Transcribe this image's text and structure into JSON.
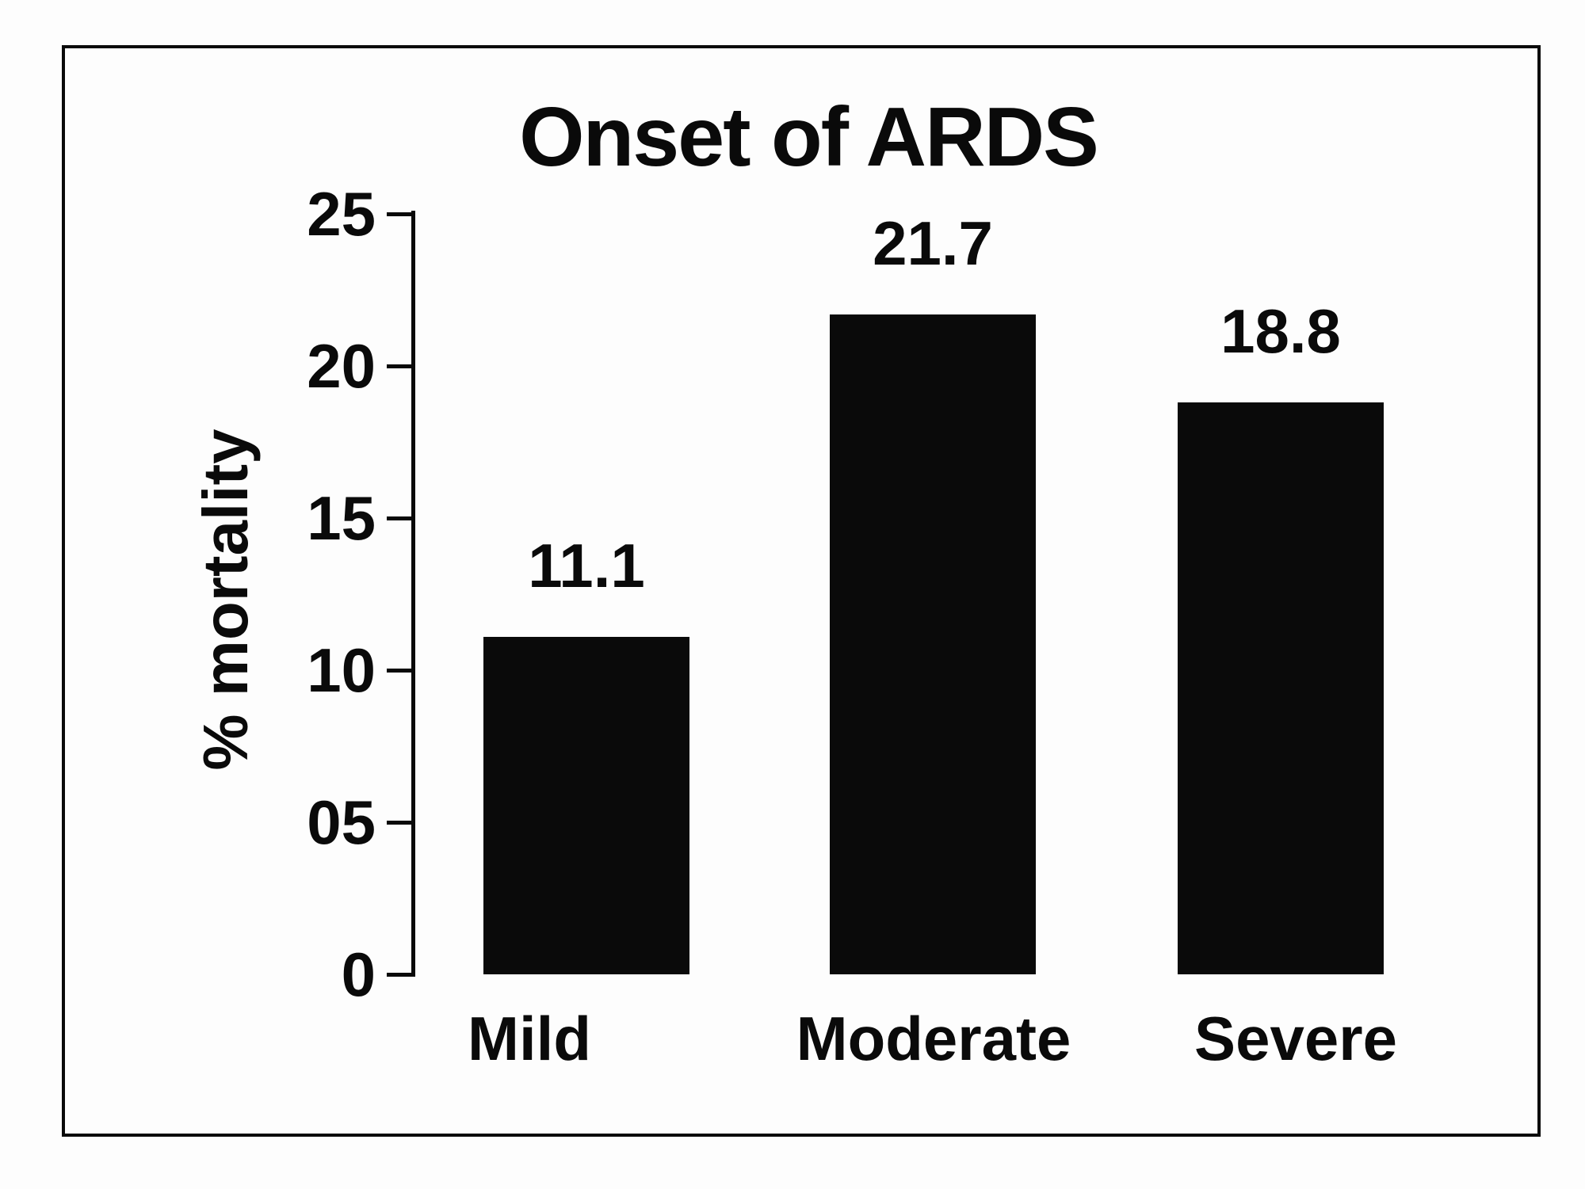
{
  "figure": {
    "title": "Onset of ARDS",
    "ylabel": "% mortality"
  },
  "chart_data": {
    "type": "bar",
    "title": "Onset of ARDS",
    "xlabel": "",
    "ylabel": "% mortality",
    "categories": [
      "Mild",
      "Moderate",
      "Severe"
    ],
    "values": [
      11.1,
      21.7,
      18.8
    ],
    "data_labels": [
      "11.1",
      "21.7",
      "18.8"
    ],
    "y_ticks": [
      {
        "value": 25,
        "label": "25"
      },
      {
        "value": 20,
        "label": "20"
      },
      {
        "value": 15,
        "label": "15"
      },
      {
        "value": 10,
        "label": "10"
      },
      {
        "value": 5,
        "label": "05"
      },
      {
        "value": 0,
        "label": "0"
      }
    ],
    "ylim": [
      0,
      25
    ],
    "grid": false,
    "legend_position": "none",
    "bar_color": "#0a0a0a",
    "text_color": "#0a0a0a",
    "background_color": "#fdfdfd",
    "frame_border_color": "#0a0a0a"
  }
}
